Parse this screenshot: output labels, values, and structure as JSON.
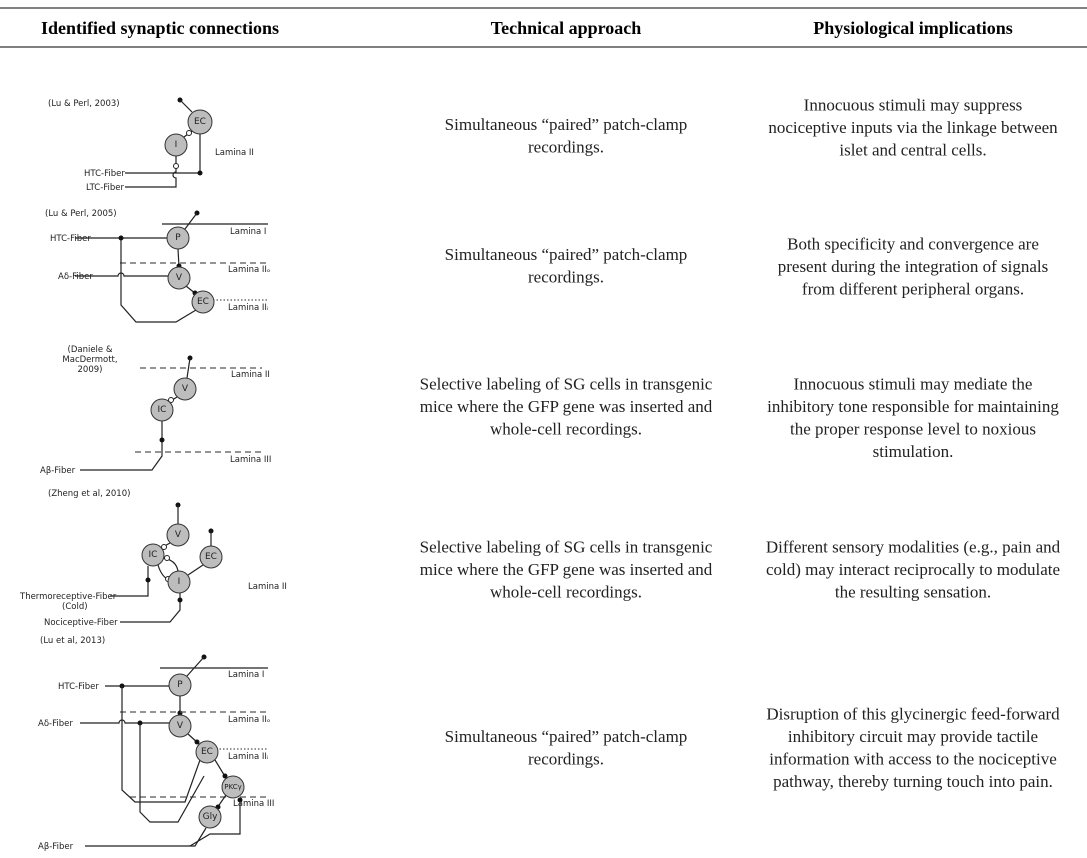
{
  "header": {
    "columns": [
      "Identified synaptic connections",
      "Technical approach",
      "Physiological implications"
    ]
  },
  "rows": [
    {
      "diagram": {
        "citation": [
          "(Lu & Perl, 2003)"
        ],
        "labels": [
          "EC",
          "I",
          "Lamina II",
          "HTC-Fiber",
          "LTC-Fiber"
        ]
      },
      "approach": [
        "Simultaneous “paired” patch-clamp",
        "recordings."
      ],
      "implications": [
        "Innocuous stimuli may suppress",
        "nociceptive inputs via the linkage between",
        "islet and central cells."
      ]
    },
    {
      "diagram": {
        "citation": [
          "(Lu & Perl, 2005)"
        ],
        "labels": [
          "P",
          "V",
          "EC",
          "Lamina I",
          "Lamina IIₒ",
          "Lamina IIᵢ",
          "HTC-Fiber",
          "Aδ-Fiber"
        ]
      },
      "approach": [
        "Simultaneous “paired” patch-clamp",
        "recordings."
      ],
      "implications": [
        "Both specificity and convergence are",
        "present during the integration of signals",
        "from different peripheral organs."
      ]
    },
    {
      "diagram": {
        "citation": [
          "(Daniele &",
          "MacDermott,",
          "2009)"
        ],
        "labels": [
          "V",
          "IC",
          "Lamina II",
          "Lamina III",
          "Aβ-Fiber"
        ]
      },
      "approach": [
        "Selective labeling of SG cells in transgenic",
        "mice where the GFP gene was inserted and",
        "whole-cell recordings."
      ],
      "implications": [
        "Innocuous stimuli may mediate the",
        "inhibitory tone responsible for maintaining",
        "the proper response level to noxious",
        "stimulation."
      ]
    },
    {
      "diagram": {
        "citation": [
          "(Zheng et al, 2010)"
        ],
        "labels": [
          "V",
          "IC",
          "EC",
          "I",
          "Lamina II",
          "Thermoreceptive-Fiber",
          "(Cold)",
          "Nociceptive-Fiber"
        ]
      },
      "approach": [
        "Selective labeling of SG cells in transgenic",
        "mice where the GFP gene was inserted and",
        "whole-cell recordings."
      ],
      "implications": [
        "Different sensory modalities (e.g., pain and",
        "cold) may interact reciprocally to modulate",
        "the resulting sensation."
      ]
    },
    {
      "diagram": {
        "citation": [
          "(Lu et al, 2013)"
        ],
        "labels": [
          "P",
          "V",
          "EC",
          "PKCγ",
          "Gly",
          "Lamina I",
          "Lamina IIₒ",
          "Lamina IIᵢ",
          "Lamina III",
          "HTC-Fiber",
          "Aδ-Fiber",
          "Aβ-Fiber"
        ]
      },
      "approach": [
        "Simultaneous “paired” patch-clamp",
        "recordings."
      ],
      "implications": [
        "Disruption of this glycinergic feed-forward",
        "inhibitory circuit may provide tactile",
        "information with access to the nociceptive",
        "pathway, thereby turning touch into pain."
      ]
    }
  ]
}
